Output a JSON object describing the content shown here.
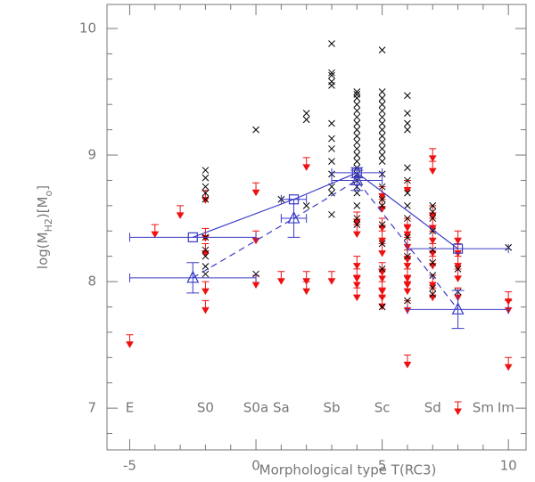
{
  "chart_data": {
    "type": "scatter",
    "xlabel": "Morphological type T(RC3)",
    "ylabel": [
      {
        "text": "log(M"
      },
      {
        "text": "H2",
        "sub": true
      },
      {
        "text": ")[M"
      },
      {
        "text": "o",
        "sub": true
      },
      {
        "text": "]"
      }
    ],
    "xlim": [
      -5.9,
      10.7
    ],
    "ylim": [
      6.67,
      10.19
    ],
    "xticks": [
      -5,
      0,
      5,
      10
    ],
    "yticks": [
      7,
      8,
      9,
      10
    ],
    "xminorticks": [
      -4,
      -3,
      -2,
      -1,
      1,
      2,
      3,
      4,
      6,
      7,
      8,
      9
    ],
    "yminorticks": [
      6.8,
      7.2,
      7.4,
      7.6,
      7.8,
      8.2,
      8.4,
      8.6,
      8.8,
      9.2,
      9.4,
      9.6,
      9.8
    ],
    "type_labels": [
      {
        "label": "E",
        "x": -5
      },
      {
        "label": "S0",
        "x": -2
      },
      {
        "label": "S0a",
        "x": 0
      },
      {
        "label": "Sa",
        "x": 1
      },
      {
        "label": "Sb",
        "x": 3
      },
      {
        "label": "Sc",
        "x": 5
      },
      {
        "label": "Sd",
        "x": 7
      },
      {
        "label": "Sm",
        "x": 9
      },
      {
        "label": "Im",
        "x": 9.9
      }
    ],
    "type_label_y": 7,
    "detections": {
      "color": "#000000",
      "x": [
        -2,
        -2,
        -2,
        -2,
        -2,
        -2,
        -2,
        -2,
        -2,
        -2,
        0,
        0,
        1,
        2,
        2,
        2,
        3,
        3,
        3,
        3,
        3,
        3,
        3,
        3,
        3,
        3,
        3,
        3,
        3,
        4,
        4,
        4,
        4,
        4,
        4,
        4,
        4,
        4,
        4,
        4,
        4,
        4,
        4,
        4,
        4,
        4,
        4,
        4,
        4,
        4,
        5,
        5,
        5,
        5,
        5,
        5,
        5,
        5,
        5,
        5,
        5,
        5,
        5,
        5,
        5,
        5,
        5,
        5,
        5,
        5,
        5,
        6,
        6,
        6,
        6,
        6,
        6,
        6,
        6,
        6,
        6,
        6,
        6,
        7,
        7,
        7,
        7,
        7,
        7,
        7,
        7,
        7,
        8,
        8,
        10
      ],
      "values": [
        8.88,
        8.82,
        8.75,
        8.7,
        8.65,
        8.35,
        8.25,
        8.2,
        8.12,
        8.06,
        9.2,
        8.06,
        8.65,
        9.33,
        9.28,
        8.6,
        9.88,
        9.65,
        9.63,
        9.58,
        9.55,
        9.25,
        9.13,
        9.05,
        8.95,
        8.85,
        8.75,
        8.7,
        8.53,
        9.5,
        9.48,
        9.45,
        9.4,
        9.35,
        9.3,
        9.25,
        9.2,
        9.15,
        9.1,
        9.05,
        9.0,
        8.95,
        8.9,
        8.85,
        8.8,
        8.75,
        8.7,
        8.6,
        8.5,
        8.45,
        9.83,
        9.5,
        9.45,
        9.4,
        9.35,
        9.3,
        9.25,
        9.2,
        9.15,
        9.1,
        9.05,
        9.0,
        8.95,
        8.85,
        8.75,
        8.65,
        8.6,
        8.45,
        8.3,
        8.1,
        7.8,
        9.47,
        9.33,
        9.25,
        9.2,
        8.9,
        8.8,
        8.7,
        8.6,
        8.5,
        8.35,
        8.2,
        7.85,
        8.6,
        8.55,
        8.5,
        8.4,
        8.25,
        8.15,
        8.05,
        7.95,
        7.9,
        8.1,
        7.92,
        8.27
      ]
    },
    "upper_limits": {
      "color": "#ee1111",
      "x": [
        -5,
        -4,
        -3,
        -2,
        -2,
        -2,
        -2,
        -2,
        0,
        0,
        0,
        1,
        2,
        2,
        2,
        3,
        4,
        4,
        4,
        4,
        4,
        4,
        5,
        5,
        5,
        5,
        5,
        5,
        5,
        5,
        5,
        5,
        6,
        6,
        6,
        6,
        6,
        6,
        6,
        6,
        6,
        6,
        6,
        7,
        7,
        7,
        7,
        7,
        7,
        7,
        7,
        7,
        8,
        8,
        8,
        8,
        8,
        8,
        10,
        10,
        10
      ],
      "values": [
        7.58,
        8.45,
        8.6,
        8.72,
        8.42,
        8.3,
        8.0,
        7.85,
        8.78,
        8.4,
        8.05,
        8.08,
        8.98,
        8.08,
        8.0,
        8.08,
        8.55,
        8.45,
        8.2,
        8.1,
        8.05,
        7.95,
        8.75,
        8.65,
        8.5,
        8.4,
        8.3,
        8.15,
        8.1,
        8.0,
        7.95,
        7.88,
        8.8,
        8.5,
        8.45,
        8.35,
        8.25,
        8.2,
        8.1,
        8.05,
        8.0,
        7.85,
        7.42,
        9.05,
        8.95,
        8.6,
        8.5,
        8.4,
        8.3,
        8.2,
        8.05,
        7.95,
        8.4,
        8.3,
        8.2,
        8.1,
        7.95,
        7.05,
        7.92,
        7.85,
        7.4
      ]
    },
    "series": [
      {
        "marker": "square",
        "line": "solid",
        "color": "#3a3ac8",
        "x": [
          -2.5,
          1.5,
          4,
          8
        ],
        "values": [
          8.35,
          8.65,
          8.86,
          8.26
        ],
        "x_low": [
          -5,
          1,
          3,
          6
        ],
        "x_high": [
          0,
          2,
          5,
          10
        ],
        "yerr": [
          0,
          0,
          0.04,
          0
        ]
      },
      {
        "marker": "triangle",
        "line": "dashed",
        "color": "#3a3ac8",
        "x": [
          -2.5,
          1.5,
          4,
          8
        ],
        "values": [
          8.03,
          8.5,
          8.8,
          7.78
        ],
        "x_low": [
          -5,
          1,
          3,
          6
        ],
        "x_high": [
          0,
          2,
          5,
          10
        ],
        "yerr": [
          0.12,
          0.15,
          0.08,
          0.15
        ]
      }
    ]
  }
}
